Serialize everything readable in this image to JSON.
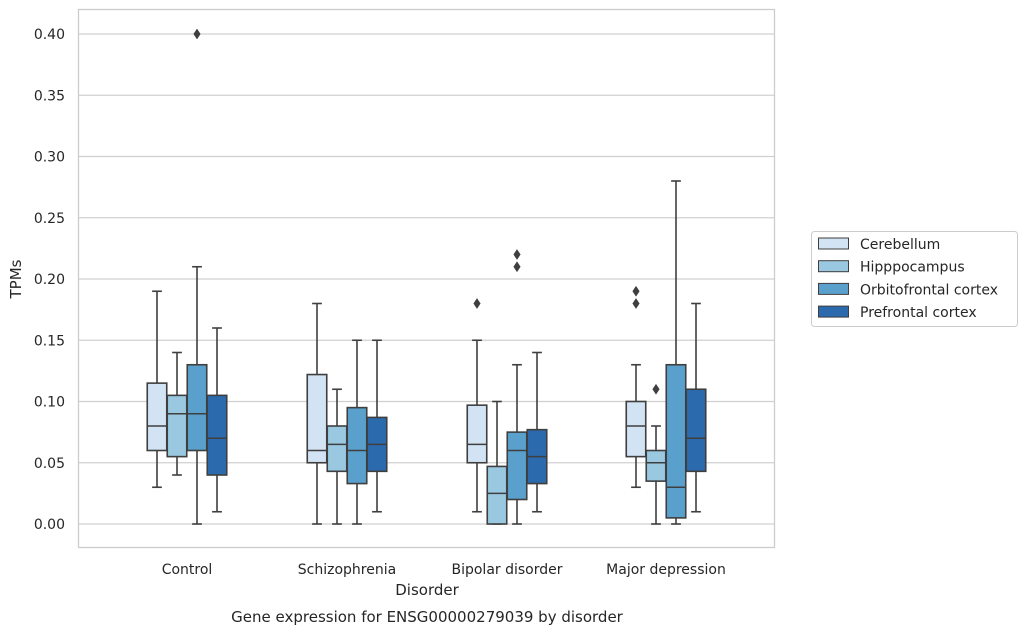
{
  "chart_data": {
    "type": "box",
    "caption": "Gene expression for ENSG00000279039 by disorder",
    "xlabel": "Disorder",
    "ylabel": "TPMs",
    "ylim": [
      -0.019,
      0.42
    ],
    "yticks": [
      "0.00",
      "0.05",
      "0.10",
      "0.15",
      "0.20",
      "0.25",
      "0.30",
      "0.35",
      "0.40"
    ],
    "grid": true,
    "legend_position": "right",
    "categories": [
      "Control",
      "Schizophrenia",
      "Bipolar disorder",
      "Major depression"
    ],
    "series": [
      {
        "name": "Cerebellum",
        "color": "#d2e3f3",
        "boxes": [
          {
            "whislo": 0.03,
            "q1": 0.06,
            "med": 0.08,
            "q3": 0.115,
            "whishi": 0.19,
            "fliers": []
          },
          {
            "whislo": 0.0,
            "q1": 0.05,
            "med": 0.06,
            "q3": 0.122,
            "whishi": 0.18,
            "fliers": []
          },
          {
            "whislo": 0.01,
            "q1": 0.05,
            "med": 0.065,
            "q3": 0.097,
            "whishi": 0.15,
            "fliers": [
              0.18
            ]
          },
          {
            "whislo": 0.03,
            "q1": 0.055,
            "med": 0.08,
            "q3": 0.1,
            "whishi": 0.13,
            "fliers": [
              0.18,
              0.19
            ]
          }
        ]
      },
      {
        "name": "Hipppocampus",
        "color": "#9ac8e0",
        "boxes": [
          {
            "whislo": 0.04,
            "q1": 0.055,
            "med": 0.09,
            "q3": 0.105,
            "whishi": 0.14,
            "fliers": []
          },
          {
            "whislo": 0.0,
            "q1": 0.043,
            "med": 0.065,
            "q3": 0.08,
            "whishi": 0.11,
            "fliers": []
          },
          {
            "whislo": 0.0,
            "q1": 0.0,
            "med": 0.025,
            "q3": 0.047,
            "whishi": 0.1,
            "fliers": []
          },
          {
            "whislo": 0.0,
            "q1": 0.035,
            "med": 0.05,
            "q3": 0.06,
            "whishi": 0.08,
            "fliers": [
              0.11
            ]
          }
        ]
      },
      {
        "name": "Orbitofrontal cortex",
        "color": "#5aa0cd",
        "boxes": [
          {
            "whislo": 0.0,
            "q1": 0.06,
            "med": 0.09,
            "q3": 0.13,
            "whishi": 0.21,
            "fliers": [
              0.4
            ]
          },
          {
            "whislo": 0.0,
            "q1": 0.033,
            "med": 0.06,
            "q3": 0.095,
            "whishi": 0.15,
            "fliers": []
          },
          {
            "whislo": 0.0,
            "q1": 0.02,
            "med": 0.06,
            "q3": 0.075,
            "whishi": 0.13,
            "fliers": [
              0.21,
              0.22
            ]
          },
          {
            "whislo": 0.0,
            "q1": 0.005,
            "med": 0.03,
            "q3": 0.13,
            "whishi": 0.28,
            "fliers": []
          }
        ]
      },
      {
        "name": "Prefrontal cortex",
        "color": "#2b6aad",
        "boxes": [
          {
            "whislo": 0.01,
            "q1": 0.04,
            "med": 0.07,
            "q3": 0.105,
            "whishi": 0.16,
            "fliers": []
          },
          {
            "whislo": 0.01,
            "q1": 0.043,
            "med": 0.065,
            "q3": 0.087,
            "whishi": 0.15,
            "fliers": []
          },
          {
            "whislo": 0.01,
            "q1": 0.033,
            "med": 0.055,
            "q3": 0.077,
            "whishi": 0.14,
            "fliers": []
          },
          {
            "whislo": 0.01,
            "q1": 0.043,
            "med": 0.07,
            "q3": 0.11,
            "whishi": 0.18,
            "fliers": []
          }
        ]
      }
    ]
  }
}
